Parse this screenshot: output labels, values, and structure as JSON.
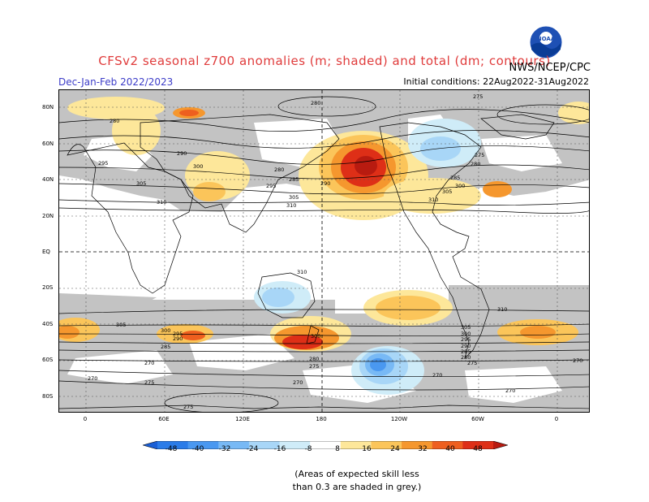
{
  "header": {
    "title": "CFSv2 seasonal z700 anomalies (m; shaded) and total (dm; contours)",
    "season": "Dec-Jan-Feb 2022/2023",
    "initial_conditions": "Initial conditions: 22Aug2022-31Aug2022",
    "agency": "NWS/NCEP/CPC",
    "logo_text": "NOAA"
  },
  "map": {
    "lat_labels": [
      "80N",
      "60N",
      "40N",
      "20N",
      "EQ",
      "20S",
      "40S",
      "60S",
      "80S"
    ],
    "lon_labels": [
      "0",
      "60E",
      "120E",
      "180",
      "120W",
      "60W",
      "0"
    ],
    "contour_labels": [
      "280",
      "280",
      "290",
      "295",
      "300",
      "305",
      "310",
      "280",
      "285",
      "290",
      "295",
      "305",
      "310",
      "275",
      "275",
      "280",
      "285",
      "300",
      "305",
      "310",
      "310",
      "305",
      "300",
      "295",
      "290",
      "285",
      "280",
      "275",
      "270",
      "275",
      "270",
      "275",
      "270",
      "270",
      "300",
      "295",
      "290",
      "285",
      "280",
      "275",
      "270",
      "270",
      "305",
      "300",
      "310"
    ]
  },
  "colorbar": {
    "labels": [
      "-48",
      "-40",
      "-32",
      "-24",
      "-16",
      "-8",
      "8",
      "16",
      "24",
      "32",
      "40",
      "48"
    ],
    "colors": [
      "#1a5fd6",
      "#2b7ce8",
      "#4a98f0",
      "#78b9f5",
      "#a8d6f7",
      "#cfecf8",
      "#ffffff",
      "#fde79a",
      "#fbc55a",
      "#f5972e",
      "#ee5f1f",
      "#de2f17",
      "#b81b10"
    ]
  },
  "note": {
    "line1": "(Areas of expected skill less",
    "line2": "than 0.3 are shaded in grey.)"
  }
}
